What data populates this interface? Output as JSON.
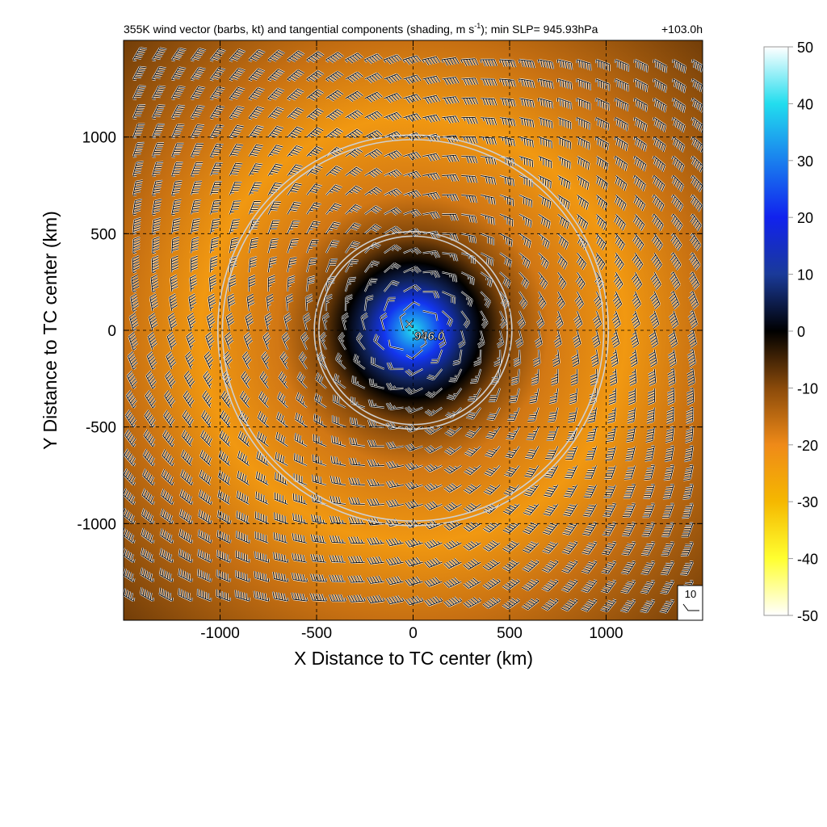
{
  "chart_data": {
    "type": "heatmap",
    "title": "355K wind vector (barbs, kt) and tangential components (shading, m s",
    "title_superscript": "-1",
    "title_tail": "); min SLP= 945.93hPa",
    "time_label": "+103.0h",
    "xlabel": "X Distance to TC center (km)",
    "ylabel": "Y Distance to TC center (km)",
    "xlim": [
      -1500,
      1500
    ],
    "ylim": [
      -1500,
      1500
    ],
    "xticks": [
      "-1000",
      "-500",
      "0",
      "500",
      "1000"
    ],
    "yticks": [
      "-1000",
      "-500",
      "0",
      "500",
      "1000"
    ],
    "xtick_values": [
      -1000,
      -500,
      0,
      500,
      1000
    ],
    "ytick_values": [
      -1000,
      -500,
      0,
      500,
      1000
    ],
    "grid": true,
    "grid_style": "dashed",
    "colorbar": {
      "min": -50,
      "max": 50,
      "labels": [
        "50",
        "40",
        "30",
        "20",
        "10",
        "0",
        "-10",
        "-20",
        "-30",
        "-40",
        "-50"
      ],
      "values": [
        50,
        40,
        30,
        20,
        10,
        0,
        -10,
        -20,
        -30,
        -40,
        -50
      ],
      "colors": {
        "50": "#ffffff",
        "40": "#22ddee",
        "20": "#1122ee",
        "10": "#1a3a99",
        "0": "#000000",
        "-10": "#8a4a0a",
        "-20": "#ef8a18",
        "-30": "#f5b800",
        "-40": "#ffff30",
        "-50": "#ffffff"
      }
    },
    "field": {
      "description_values_m_s": {
        "center": 40,
        "inner_core_radius_km": 150,
        "zero_contour_radius_km": 350,
        "max_negative_radius_km": 1100,
        "max_negative": -23,
        "corner": -8
      }
    },
    "range_rings_km": [
      500,
      1000
    ],
    "min_slp_marker": {
      "label": "946.0",
      "x": -20,
      "y": 20
    },
    "barb_spacing_km": 100,
    "reference_barb": {
      "label": "10",
      "speed_kt": 10
    }
  }
}
